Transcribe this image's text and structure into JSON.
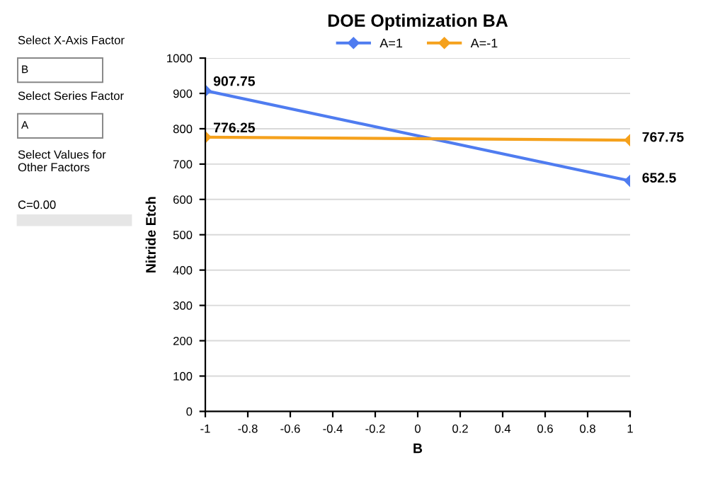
{
  "chart_data": {
    "type": "line",
    "title": "DOE Optimization BA",
    "xlabel": "B",
    "ylabel": "Nitride Etch",
    "x": [
      -1,
      1
    ],
    "series": [
      {
        "name": "A=1",
        "color": "#4f7cf0",
        "values": [
          907.75,
          652.5
        ]
      },
      {
        "name": "A=-1",
        "color": "#f5a11c",
        "values": [
          776.25,
          767.75
        ]
      }
    ],
    "xlim": [
      -1,
      1
    ],
    "xticks": [
      -1,
      -0.8,
      -0.6,
      -0.4,
      -0.2,
      0,
      0.2,
      0.4,
      0.6,
      0.8,
      1
    ],
    "ylim": [
      0,
      1000
    ],
    "yticks": [
      0,
      100,
      200,
      300,
      400,
      500,
      600,
      700,
      800,
      900,
      1000
    ],
    "grid": "y",
    "legend": "top",
    "marker": "diamond",
    "line_style": "solid",
    "data_labels": true,
    "annotations": [
      "Select X-Axis Factor",
      "B",
      "Select Series Factor",
      "A",
      "Select Values for\nOther Factors",
      "C=0.00"
    ]
  }
}
